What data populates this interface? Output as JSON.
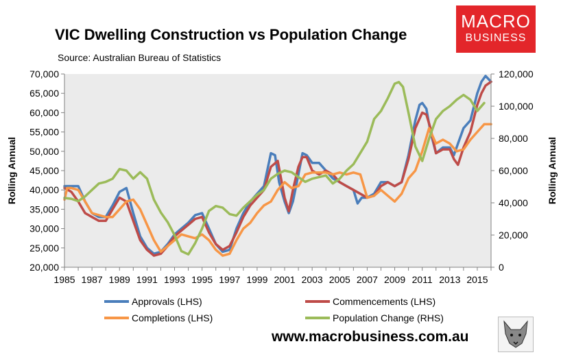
{
  "header": {
    "title": "VIC Dwelling Construction vs Population Change",
    "subtitle": "Source: Australian Bureau of Statistics"
  },
  "logo": {
    "line1": "MACRO",
    "line2": "BUSINESS",
    "color": "#e3262a"
  },
  "footer": {
    "url": "www.macrobusiness.com.au"
  },
  "colors": {
    "approvals": "#4a7ebb",
    "commencements": "#be4b48",
    "completions": "#f79646",
    "population": "#9bbb59",
    "plot_bg": "#ebebeb"
  },
  "chart_data": {
    "type": "line",
    "title": "VIC Dwelling Construction vs Population Change",
    "ylabel_left": "Rolling Annual",
    "ylabel_right": "Rolling Annual",
    "ylim_left": [
      20000,
      70000
    ],
    "ylim_right": [
      0,
      120000
    ],
    "xlim": [
      1985,
      2016
    ],
    "yticks_left": [
      "20,000",
      "25,000",
      "30,000",
      "35,000",
      "40,000",
      "45,000",
      "50,000",
      "55,000",
      "60,000",
      "65,000",
      "70,000"
    ],
    "yticks_right": [
      "0",
      "20,000",
      "40,000",
      "60,000",
      "80,000",
      "100,000",
      "120,000"
    ],
    "xticks": [
      "1985",
      "1987",
      "1989",
      "1991",
      "1993",
      "1995",
      "1997",
      "1999",
      "2001",
      "2003",
      "2005",
      "2007",
      "2009",
      "2011",
      "2013",
      "2015"
    ],
    "grid": false,
    "legend_position": "bottom",
    "series": [
      {
        "name": "Approvals (LHS)",
        "axis": "left",
        "color": "#4a7ebb",
        "x": [
          1985,
          1985.5,
          1986,
          1986.5,
          1987,
          1987.5,
          1988,
          1988.5,
          1989,
          1989.5,
          1990,
          1990.5,
          1991,
          1991.5,
          1992,
          1992.5,
          1993,
          1993.5,
          1994,
          1994.5,
          1995,
          1995.5,
          1996,
          1996.5,
          1997,
          1997.5,
          1998,
          1998.5,
          1999,
          1999.5,
          2000,
          2000.3,
          2000.6,
          2001,
          2001.3,
          2001.6,
          2002,
          2002.3,
          2002.6,
          2003,
          2003.5,
          2004,
          2004.5,
          2005,
          2005.5,
          2006,
          2006.3,
          2006.6,
          2007,
          2007.5,
          2008,
          2008.5,
          2009,
          2009.5,
          2010,
          2010.5,
          2010.8,
          2011,
          2011.3,
          2011.6,
          2012,
          2012.5,
          2013,
          2013.3,
          2013.6,
          2014,
          2014.5,
          2015,
          2015.3,
          2015.6,
          2016
        ],
        "values": [
          41000,
          41000,
          41000,
          37000,
          34000,
          33000,
          33000,
          36000,
          39500,
          40500,
          34000,
          28000,
          25000,
          23500,
          24000,
          26000,
          28500,
          30000,
          31500,
          33500,
          34000,
          30000,
          26000,
          24000,
          24500,
          30000,
          34000,
          37000,
          39000,
          41000,
          49500,
          49000,
          42000,
          37000,
          34000,
          37000,
          44000,
          49500,
          49000,
          47000,
          47000,
          45000,
          43000,
          42000,
          41000,
          40000,
          36500,
          38000,
          38000,
          39000,
          42000,
          42000,
          41000,
          42000,
          49000,
          58000,
          62000,
          62500,
          61000,
          55000,
          49500,
          51000,
          51000,
          49000,
          52000,
          56000,
          58000,
          65000,
          68000,
          69500,
          68000
        ]
      },
      {
        "name": "Commencements (LHS)",
        "axis": "left",
        "color": "#be4b48",
        "x": [
          1985,
          1985.5,
          1986,
          1986.5,
          1987,
          1987.5,
          1988,
          1988.5,
          1989,
          1989.5,
          1990,
          1990.5,
          1991,
          1991.5,
          1992,
          1992.5,
          1993,
          1993.5,
          1994,
          1994.5,
          1995,
          1995.5,
          1996,
          1996.5,
          1997,
          1997.5,
          1998,
          1998.5,
          1999,
          1999.5,
          2000,
          2000.5,
          2001,
          2001.3,
          2001.6,
          2002,
          2002.3,
          2002.6,
          2003,
          2003.5,
          2004,
          2004.5,
          2005,
          2005.5,
          2006,
          2006.5,
          2007,
          2007.5,
          2008,
          2008.5,
          2009,
          2009.5,
          2010,
          2010.5,
          2011,
          2011.3,
          2011.6,
          2012,
          2012.5,
          2013,
          2013.3,
          2013.6,
          2014,
          2014.5,
          2015,
          2015.3,
          2015.6,
          2016
        ],
        "values": [
          40500,
          39500,
          37000,
          34000,
          33000,
          32000,
          32000,
          35000,
          38000,
          37000,
          32000,
          27000,
          24500,
          23000,
          23500,
          25500,
          28000,
          29500,
          31000,
          32500,
          33000,
          29000,
          26000,
          24500,
          25500,
          29000,
          33000,
          36000,
          38000,
          40000,
          46000,
          47500,
          38000,
          34500,
          40000,
          46000,
          48500,
          48500,
          45000,
          44000,
          45000,
          44000,
          42000,
          41000,
          40000,
          39000,
          38000,
          38500,
          41000,
          42000,
          41000,
          42000,
          48000,
          56000,
          60000,
          59500,
          56000,
          49500,
          50500,
          50500,
          48000,
          46500,
          51000,
          55000,
          62000,
          65000,
          67000,
          68000
        ]
      },
      {
        "name": "Completions (LHS)",
        "axis": "left",
        "color": "#f79646",
        "x": [
          1985,
          1985.2,
          1985.5,
          1986,
          1986.5,
          1987,
          1987.5,
          1988,
          1988.5,
          1989,
          1989.5,
          1990,
          1990.5,
          1991,
          1991.5,
          1992,
          1992.5,
          1993,
          1993.5,
          1994,
          1994.5,
          1995,
          1995.5,
          1996,
          1996.5,
          1997,
          1997.5,
          1998,
          1998.5,
          1999,
          1999.5,
          2000,
          2000.5,
          2001,
          2001.5,
          2002,
          2002.5,
          2003,
          2003.5,
          2004,
          2004.5,
          2005,
          2005.5,
          2006,
          2006.5,
          2007,
          2007.5,
          2008,
          2008.5,
          2009,
          2009.5,
          2010,
          2010.5,
          2011,
          2011.5,
          2012,
          2012.5,
          2013,
          2013.5,
          2014,
          2014.5,
          2015,
          2015.5,
          2016
        ],
        "values": [
          37500,
          40500,
          40500,
          40000,
          37000,
          34000,
          33500,
          33000,
          33000,
          35000,
          37000,
          37500,
          35000,
          31000,
          27000,
          24000,
          25500,
          27000,
          28500,
          28000,
          27500,
          28500,
          27000,
          24500,
          23000,
          23500,
          27000,
          30000,
          31500,
          34000,
          36000,
          37000,
          40000,
          42000,
          40500,
          41000,
          44000,
          44500,
          44500,
          44500,
          44000,
          44500,
          44000,
          44500,
          44000,
          38000,
          38500,
          40000,
          38500,
          37000,
          39000,
          43000,
          45000,
          50000,
          56000,
          52000,
          53000,
          52000,
          50000,
          50500,
          53000,
          55000,
          57000,
          57000
        ]
      },
      {
        "name": "Population Change (RHS)",
        "axis": "right",
        "color": "#9bbb59",
        "x": [
          1985,
          1985.5,
          1986,
          1986.5,
          1987,
          1987.5,
          1988,
          1988.5,
          1989,
          1989.5,
          1990,
          1990.5,
          1991,
          1991.5,
          1992,
          1992.5,
          1993,
          1993.5,
          1994,
          1994.5,
          1995,
          1995.5,
          1996,
          1996.5,
          1997,
          1997.5,
          1998,
          1998.5,
          1999,
          1999.5,
          2000,
          2000.5,
          2001,
          2001.5,
          2002,
          2002.5,
          2003,
          2003.5,
          2004,
          2004.5,
          2005,
          2005.5,
          2006,
          2006.5,
          2007,
          2007.5,
          2008,
          2008.5,
          2009,
          2009.3,
          2009.6,
          2010,
          2010.5,
          2011,
          2011.5,
          2012,
          2012.5,
          2013,
          2013.5,
          2014,
          2014.5,
          2015,
          2015.5
        ],
        "values": [
          43000,
          42500,
          41000,
          44000,
          48000,
          52000,
          53000,
          55000,
          61000,
          60000,
          55000,
          59000,
          55000,
          42000,
          34000,
          28000,
          20000,
          10000,
          8000,
          15000,
          24000,
          35000,
          38000,
          37000,
          33000,
          32000,
          37000,
          41000,
          45000,
          48000,
          55000,
          58000,
          60000,
          59000,
          56000,
          53000,
          55000,
          56000,
          57000,
          52000,
          55000,
          60000,
          64000,
          71000,
          78000,
          92000,
          97000,
          105000,
          114000,
          115000,
          112000,
          96000,
          75000,
          66000,
          80000,
          92000,
          97000,
          100000,
          104000,
          107000,
          104000,
          97000,
          102000
        ]
      }
    ]
  }
}
